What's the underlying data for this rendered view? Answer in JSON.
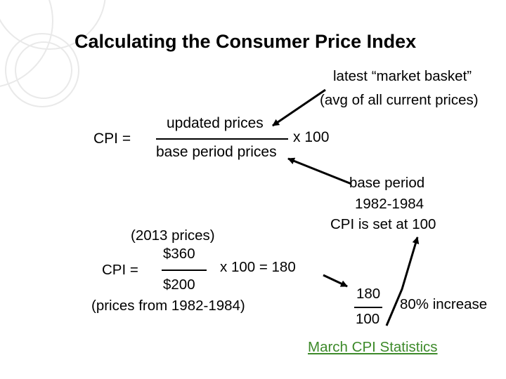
{
  "slide": {
    "title": "Calculating the Consumer Price Index",
    "formula": {
      "lhs": "CPI =",
      "numerator": "updated prices",
      "denominator": "base period prices",
      "multiplier": "x 100"
    },
    "note_latest": {
      "line1": "latest “market basket”",
      "line2": "(avg of all current prices)"
    },
    "note_base": {
      "line1": "base period",
      "line2": "1982-1984",
      "line3": "CPI is set at 100"
    },
    "example": {
      "numerator_note": "(2013 prices)",
      "numerator": "$360",
      "lhs": "CPI =",
      "result": "x 100 = 180",
      "denominator": "$200",
      "denominator_note": "(prices from 1982-1984)"
    },
    "ratio": {
      "numerator": "180",
      "denominator": "100",
      "label": "80% increase"
    },
    "link_text": "March CPI Statistics",
    "colors": {
      "text": "#000000",
      "link": "#3d8a2a",
      "decoration": "#e6e6e6",
      "arrow": "#000000"
    }
  }
}
